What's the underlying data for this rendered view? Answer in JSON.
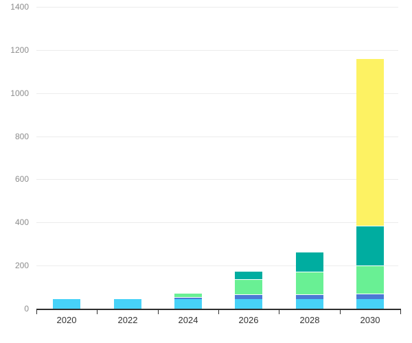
{
  "chart_data": {
    "type": "bar",
    "stacked": true,
    "title": "",
    "xlabel": "",
    "ylabel": "",
    "categories": [
      "2020",
      "2022",
      "2024",
      "2026",
      "2028",
      "2030"
    ],
    "series": [
      {
        "name": "light-blue-segment",
        "color": "#47d2f8",
        "values": [
          45,
          45,
          45,
          45,
          45,
          45
        ]
      },
      {
        "name": "blue-segment",
        "color": "#4a79d4",
        "values": [
          0,
          0,
          10,
          22,
          22,
          25
        ]
      },
      {
        "name": "green-segment",
        "color": "#69f094",
        "values": [
          0,
          0,
          18,
          70,
          105,
          130
        ]
      },
      {
        "name": "teal-segment",
        "color": "#00ada0",
        "values": [
          0,
          0,
          0,
          38,
          92,
          185
        ]
      },
      {
        "name": "yellow-segment",
        "color": "#fdf263",
        "values": [
          0,
          0,
          0,
          0,
          0,
          775
        ]
      }
    ],
    "stack_totals": [
      45,
      45,
      73,
      175,
      264,
      1160
    ],
    "ylim": [
      0,
      1400
    ],
    "ytick_interval": 200,
    "ytick_labels": [
      "0",
      "200",
      "400",
      "600",
      "800",
      "1000",
      "1200",
      "1400"
    ],
    "grid": true,
    "legend": false
  },
  "colors": {
    "background": "#ffffff",
    "gridline": "#ececec",
    "axis_line": "#2e2e2e",
    "y_tick_label": "#8c8c8c",
    "x_tick_label": "#333333"
  }
}
